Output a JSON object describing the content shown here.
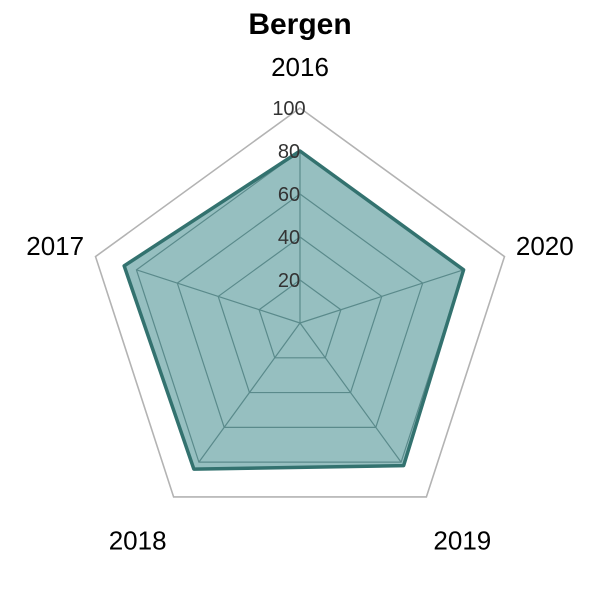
{
  "chart_data": {
    "type": "radar",
    "title": "Bergen",
    "categories": [
      "2016",
      "2020",
      "2019",
      "2018",
      "2017"
    ],
    "series": [
      {
        "values": [
          80,
          80,
          82,
          84,
          86
        ]
      }
    ],
    "rlim": [
      0,
      100
    ],
    "r_ticks": [
      "20",
      "40",
      "60",
      "80",
      "100"
    ],
    "colors": {
      "fill": "#3f8a8c",
      "stroke": "#33726f",
      "grid": "#7a8a8a",
      "outer_ring": "#b3b3b3"
    },
    "grid": true
  }
}
